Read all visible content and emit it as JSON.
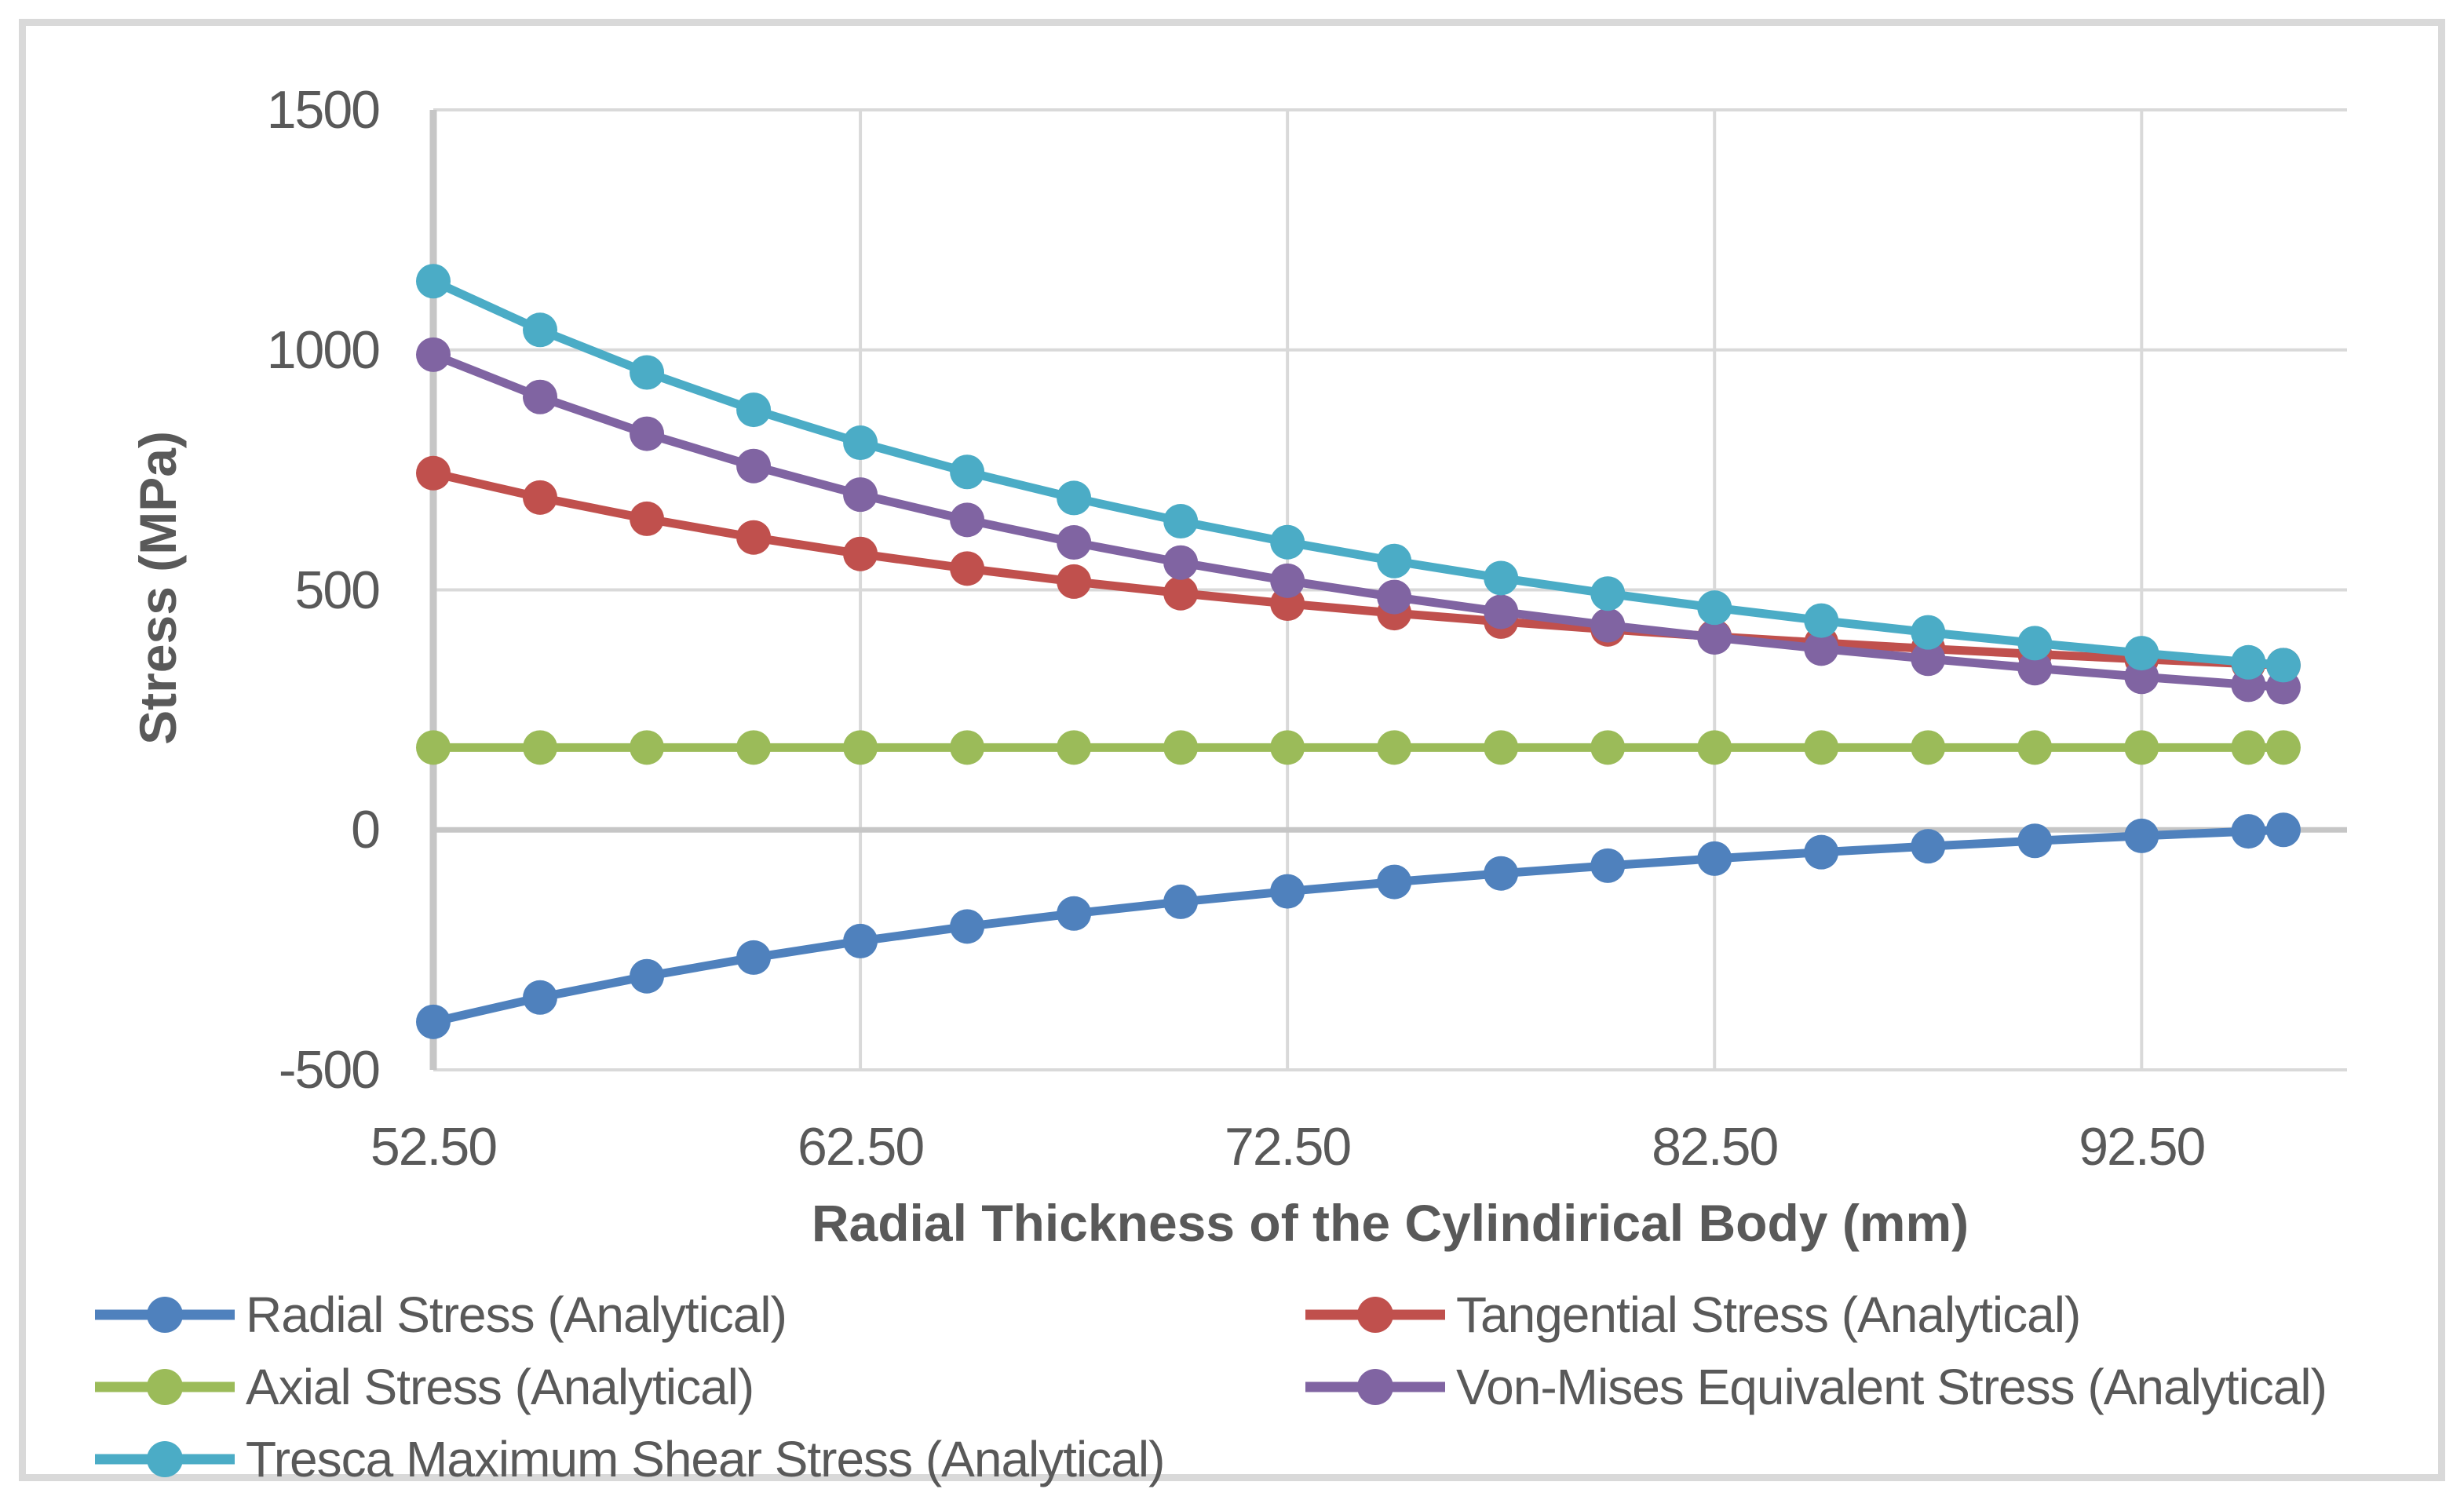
{
  "figure": {
    "background": "#FFFFFF",
    "frame_border_color": "#D9D9D9",
    "text_color": "#595959",
    "grid_color": "#D9D9D9",
    "axis_line_color": "#C6C6C6"
  },
  "chart_data": {
    "type": "line",
    "title": "",
    "xlabel": "Radial Thickness of the Cylindirical Body (mm)",
    "ylabel": "Stress (MPa)",
    "xlim": [
      52.5,
      97.31
    ],
    "ylim": [
      -500,
      1500
    ],
    "grid": "both",
    "legend_position": "bottom",
    "x": [
      52.5,
      55.0,
      57.5,
      60.0,
      62.5,
      65.0,
      67.5,
      70.0,
      72.5,
      75.0,
      77.5,
      80.0,
      82.5,
      85.0,
      87.5,
      90.0,
      92.5,
      95.0,
      95.82
    ],
    "xticks": [
      {
        "value": 52.5,
        "label": "52.50"
      },
      {
        "value": 62.5,
        "label": "62.50"
      },
      {
        "value": 72.5,
        "label": "72.50"
      },
      {
        "value": 82.5,
        "label": "82.50"
      },
      {
        "value": 92.5,
        "label": "92.50"
      }
    ],
    "yticks": [
      {
        "value": 1500,
        "label": "1500"
      },
      {
        "value": 1000,
        "label": "1000"
      },
      {
        "value": 500,
        "label": "500"
      },
      {
        "value": 0,
        "label": "0"
      },
      {
        "value": -500,
        "label": "-500"
      }
    ],
    "series": [
      {
        "name": "Radial Stress (Analytical)",
        "color": "#4F81BD",
        "values": [
          -400.0,
          -349.2,
          -304.9,
          -266.0,
          -231.7,
          -201.3,
          -174.2,
          -149.9,
          -128.1,
          -108.5,
          -90.7,
          -74.6,
          -59.9,
          -46.5,
          -34.2,
          -22.9,
          -12.5,
          -3.0,
          0.0
        ]
      },
      {
        "name": "Tangential Stress (Analytical)",
        "color": "#C0504D",
        "values": [
          743.2,
          692.4,
          648.1,
          609.2,
          574.9,
          544.4,
          517.3,
          493.1,
          471.3,
          451.6,
          433.9,
          417.7,
          403.0,
          389.6,
          377.3,
          366.1,
          355.7,
          346.1,
          343.2
        ]
      },
      {
        "name": "Axial Stress (Analytical)",
        "color": "#9BBB59",
        "values": [
          171.6,
          171.6,
          171.6,
          171.6,
          171.6,
          171.6,
          171.6,
          171.6,
          171.6,
          171.6,
          171.6,
          171.6,
          171.6,
          171.6,
          171.6,
          171.6,
          171.6,
          171.6,
          171.6
        ]
      },
      {
        "name": "Von-Mises Equivalent Stress (Analytical)",
        "color": "#8064A2",
        "values": [
          990.0,
          901.9,
          825.3,
          758.0,
          698.5,
          645.8,
          598.9,
          556.9,
          519.1,
          485.1,
          454.3,
          426.3,
          400.9,
          377.6,
          356.4,
          336.9,
          318.9,
          302.3,
          297.2
        ]
      },
      {
        "name": "Tresca Maximum Shear Stress (Analytical)",
        "color": "#4BACC6",
        "values": [
          1143.1,
          1041.6,
          953.0,
          875.2,
          806.6,
          745.7,
          691.5,
          643.0,
          599.4,
          560.1,
          524.6,
          492.3,
          462.9,
          436.1,
          411.5,
          389.0,
          368.2,
          349.1,
          343.2
        ]
      }
    ]
  }
}
